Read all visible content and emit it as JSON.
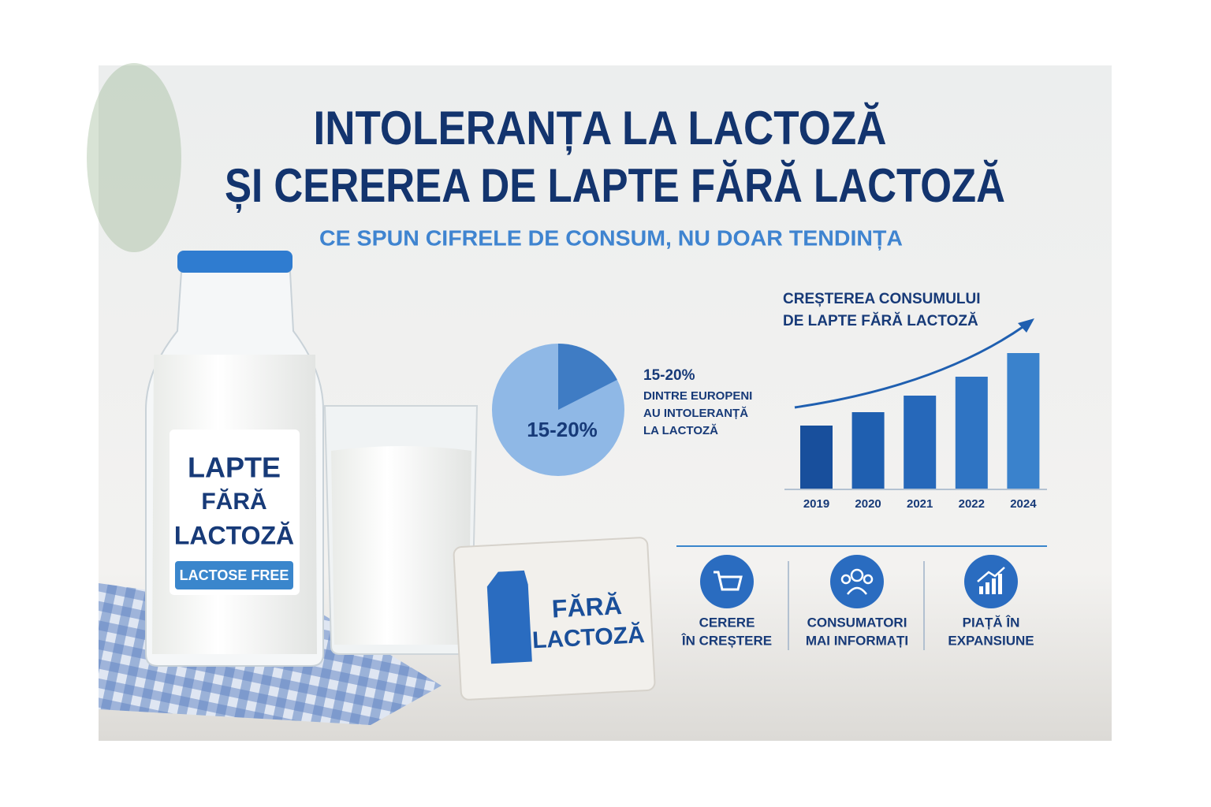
{
  "header": {
    "title": [
      "INTOLERANȚA LA LACTOZĂ",
      "ȘI CEREREA DE LAPTE FĂRĂ LACTOZĂ"
    ],
    "subtitle": "CE SPUN CIFRELE DE CONSUM, NU DOAR TENDINȚA"
  },
  "bottle": {
    "label": [
      "LAPTE",
      "FĂRĂ",
      "LACTOZĂ"
    ],
    "badge": "LACTOSE FREE"
  },
  "card": {
    "label": [
      "FĂRĂ",
      "LACTOZĂ"
    ]
  },
  "pie": {
    "value": 17.5,
    "value_label": "15-20%",
    "caption": [
      "15-20%",
      "DINTRE EUROPENI",
      "AU INTOLERANȚĂ",
      "LA LACTOZĂ"
    ]
  },
  "growth_chart": {
    "type": "bar",
    "title": [
      "CREȘTEREA CONSUMULUI",
      "DE LAPTE FĂRĂ LACTOZĂ"
    ],
    "categories": [
      "2019",
      "2020",
      "2021",
      "2022",
      "2024"
    ],
    "values": [
      80,
      97,
      118,
      142,
      172
    ],
    "colors": [
      "#184f9c",
      "#1f5fb0",
      "#2668ba",
      "#2f74c3",
      "#3a82cc"
    ]
  },
  "features": [
    {
      "label": [
        "CERERE",
        "ÎN CREȘTERE"
      ]
    },
    {
      "label": [
        "CONSUMATORI",
        "MAI INFORMAȚI"
      ]
    },
    {
      "label": [
        "PIAȚĂ ÎN",
        "EXPANSIUNE"
      ]
    }
  ]
}
